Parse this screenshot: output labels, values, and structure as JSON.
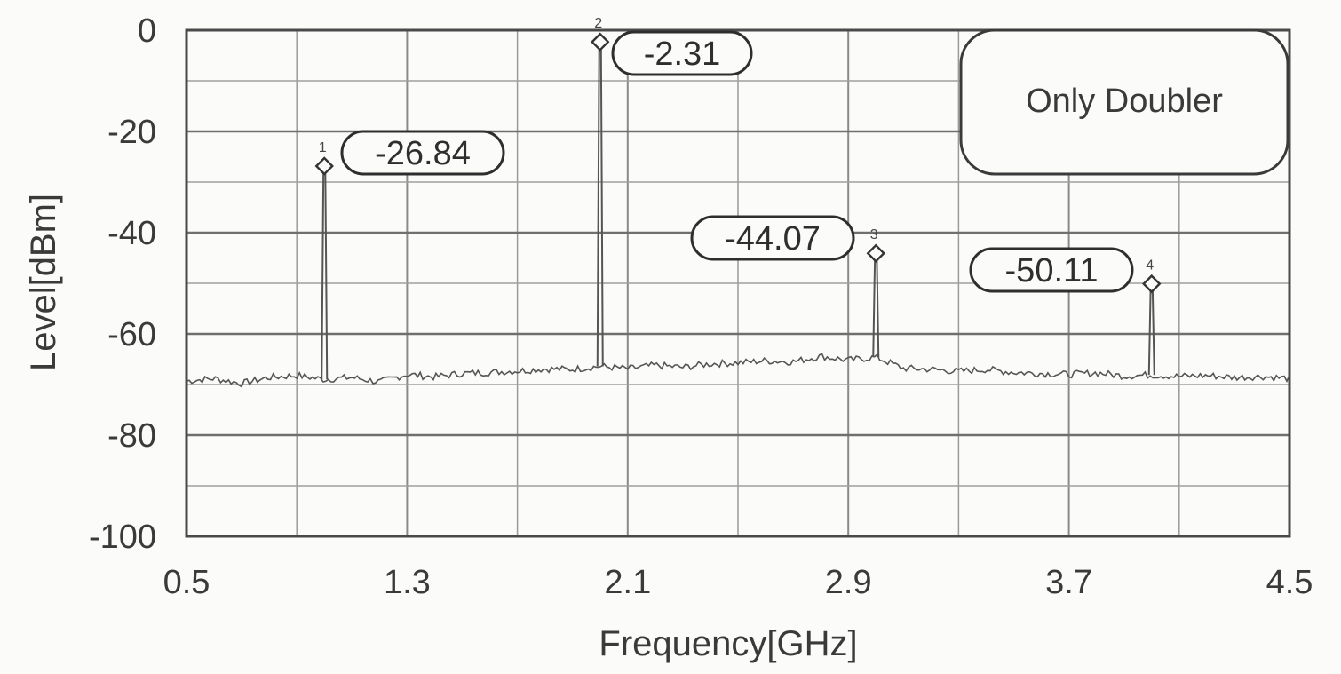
{
  "chart_data": {
    "type": "line",
    "xlabel": "Frequency[GHz]",
    "ylabel": "Level[dBm]",
    "xlim": [
      0.5,
      4.5
    ],
    "ylim": [
      -100,
      0
    ],
    "x_ticks": [
      "0.5",
      "1.3",
      "2.1",
      "2.9",
      "3.7",
      "4.5"
    ],
    "y_ticks": [
      "0",
      "-20",
      "-40",
      "-60",
      "-80",
      "-100"
    ],
    "grid": true,
    "annotation_box": "Only Doubler",
    "markers": [
      {
        "index": "1",
        "x": 1.0,
        "y": -26.84,
        "label": "-26.84"
      },
      {
        "index": "2",
        "x": 2.0,
        "y": -2.31,
        "label": "-2.31"
      },
      {
        "index": "3",
        "x": 3.0,
        "y": -44.07,
        "label": "-44.07"
      },
      {
        "index": "4",
        "x": 4.0,
        "y": -50.11,
        "label": "-50.11"
      }
    ],
    "series": [
      {
        "noise_floor": [
          [
            0.5,
            -69.3
          ],
          [
            0.6,
            -68.8
          ],
          [
            0.7,
            -69.8
          ],
          [
            0.8,
            -68.6
          ],
          [
            0.9,
            -68.2
          ],
          [
            1.0,
            -69.0
          ],
          [
            1.1,
            -68.6
          ],
          [
            1.2,
            -69.5
          ],
          [
            1.3,
            -68.0
          ],
          [
            1.4,
            -68.5
          ],
          [
            1.5,
            -67.8
          ],
          [
            1.6,
            -67.6
          ],
          [
            1.7,
            -67.3
          ],
          [
            1.8,
            -66.9
          ],
          [
            1.9,
            -67.0
          ],
          [
            2.0,
            -66.4
          ],
          [
            2.1,
            -66.9
          ],
          [
            2.2,
            -66.2
          ],
          [
            2.3,
            -66.6
          ],
          [
            2.4,
            -65.9
          ],
          [
            2.5,
            -65.7
          ],
          [
            2.6,
            -65.3
          ],
          [
            2.7,
            -65.5
          ],
          [
            2.8,
            -64.4
          ],
          [
            2.9,
            -65.2
          ],
          [
            3.0,
            -64.6
          ],
          [
            3.1,
            -66.8
          ],
          [
            3.2,
            -67.0
          ],
          [
            3.3,
            -67.4
          ],
          [
            3.4,
            -67.0
          ],
          [
            3.5,
            -67.6
          ],
          [
            3.6,
            -67.8
          ],
          [
            3.7,
            -68.0
          ],
          [
            3.8,
            -67.7
          ],
          [
            3.9,
            -68.3
          ],
          [
            4.0,
            -68.1
          ],
          [
            4.1,
            -68.4
          ],
          [
            4.2,
            -68.2
          ],
          [
            4.3,
            -68.6
          ],
          [
            4.4,
            -68.4
          ],
          [
            4.5,
            -68.8
          ]
        ]
      }
    ]
  }
}
